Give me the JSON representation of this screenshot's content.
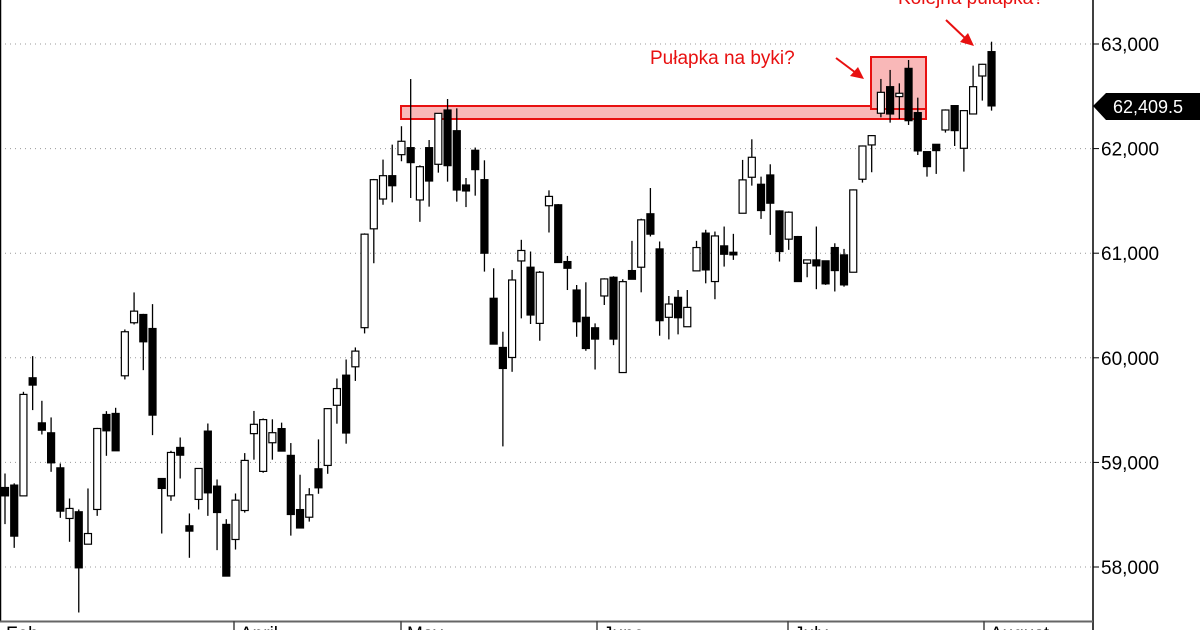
{
  "chart_data": {
    "type": "candlestick",
    "title": "",
    "xlabel": "",
    "ylabel": "",
    "ylim": [
      57500,
      63400
    ],
    "grid": true,
    "y_ticks": [
      "58,000",
      "59,000",
      "60,000",
      "61,000",
      "62,000",
      "63,000"
    ],
    "y_tick_values": [
      58000,
      59000,
      60000,
      61000,
      62000,
      63000
    ],
    "x_labels": [
      "Feb",
      "April",
      "May",
      "June",
      "July",
      "August"
    ],
    "last_price": 62409.5,
    "last_price_label": "62,409.5",
    "colors": {
      "up": "#ffffff",
      "down": "#000000",
      "annotation": "#e81010",
      "annotation_fill": "#f9b8b8",
      "grid": "#999999"
    },
    "candles_ohlc": [
      [
        58760,
        58894,
        58410,
        58680
      ],
      [
        58783,
        58800,
        58183,
        58295
      ],
      [
        58680,
        59675,
        58680,
        59650
      ],
      [
        59809,
        60016,
        59500,
        59739
      ],
      [
        59378,
        59589,
        59267,
        59308
      ],
      [
        59283,
        59430,
        58910,
        58996
      ],
      [
        58948,
        58990,
        58470,
        58534
      ],
      [
        58464,
        58655,
        58241,
        58560
      ],
      [
        58528,
        58550,
        57565,
        57992
      ],
      [
        58218,
        58751,
        58218,
        58320
      ],
      [
        58550,
        59330,
        58489,
        59324
      ],
      [
        59458,
        59490,
        59063,
        59302
      ],
      [
        59468,
        59522,
        59111,
        59111
      ],
      [
        59828,
        60271,
        59793,
        60249
      ],
      [
        60335,
        60625,
        60319,
        60446
      ],
      [
        60414,
        60420,
        59882,
        60153
      ],
      [
        60280,
        60513,
        59261,
        59452
      ],
      [
        58846,
        58850,
        58320,
        58751
      ],
      [
        58680,
        59111,
        58633,
        59095
      ],
      [
        59143,
        59238,
        58846,
        59069
      ],
      [
        58394,
        58512,
        58088,
        58343
      ],
      [
        58646,
        58942,
        58550,
        58942
      ],
      [
        59299,
        59372,
        58489,
        58709
      ],
      [
        58773,
        58837,
        58161,
        58521
      ],
      [
        58407,
        58457,
        57913,
        57913
      ],
      [
        58263,
        58703,
        58167,
        58639
      ],
      [
        58540,
        59089,
        58520,
        59019
      ],
      [
        59275,
        59492,
        59026,
        59364
      ],
      [
        58914,
        59420,
        58901,
        59409
      ],
      [
        59188,
        59412,
        59026,
        59284
      ],
      [
        59323,
        59380,
        59108,
        59108
      ],
      [
        59067,
        59185,
        58300,
        58502
      ],
      [
        58549,
        58882,
        58373,
        58373
      ],
      [
        58476,
        58754,
        58434,
        58690
      ],
      [
        58939,
        59220,
        58700,
        58757
      ],
      [
        58971,
        59520,
        58891,
        59514
      ],
      [
        59546,
        59802,
        59370,
        59706
      ],
      [
        59834,
        59984,
        59179,
        59281
      ],
      [
        59914,
        60099,
        59779,
        60064
      ],
      [
        60288,
        61190,
        60233,
        61182
      ],
      [
        61233,
        61710,
        60904,
        61703
      ],
      [
        61518,
        61895,
        61463,
        61741
      ],
      [
        61741,
        62038,
        61486,
        61645
      ],
      [
        61942,
        62214,
        61879,
        62070
      ],
      [
        62009,
        62665,
        61528,
        61866
      ],
      [
        61509,
        61840,
        61300,
        61827
      ],
      [
        62009,
        62082,
        61445,
        61690
      ],
      [
        61850,
        62340,
        61770,
        62337
      ],
      [
        62369,
        62474,
        61684,
        61837
      ],
      [
        62171,
        62385,
        61493,
        61604
      ],
      [
        61652,
        61719,
        61441,
        61595
      ],
      [
        61984,
        62010,
        61550,
        61799
      ],
      [
        61703,
        61888,
        60824,
        61000
      ],
      [
        60569,
        60856,
        60131,
        60131
      ],
      [
        60099,
        60249,
        59153,
        59898
      ],
      [
        60003,
        60840,
        59866,
        60744
      ],
      [
        60926,
        61128,
        60377,
        61026
      ],
      [
        60866,
        61016,
        60323,
        60409
      ],
      [
        60329,
        60830,
        60163,
        60818
      ],
      [
        61454,
        61601,
        61198,
        61543
      ],
      [
        61463,
        61470,
        60911,
        60911
      ],
      [
        60920,
        60974,
        60648,
        60856
      ],
      [
        60648,
        60696,
        60201,
        60345
      ],
      [
        60387,
        60722,
        60067,
        60089
      ],
      [
        60287,
        60329,
        59888,
        60179
      ],
      [
        60591,
        60760,
        60505,
        60754
      ],
      [
        60770,
        60780,
        60121,
        60179
      ],
      [
        59859,
        60751,
        59859,
        60728
      ],
      [
        60834,
        61118,
        60751,
        60751
      ],
      [
        60866,
        61330,
        60626,
        61319
      ],
      [
        61377,
        61623,
        61160,
        61182
      ],
      [
        61041,
        61112,
        60211,
        60355
      ],
      [
        60387,
        60591,
        60176,
        60514
      ],
      [
        60578,
        60648,
        60224,
        60383
      ],
      [
        60297,
        60648,
        60297,
        60482
      ],
      [
        60831,
        61118,
        60831,
        61054
      ],
      [
        61192,
        61224,
        60712,
        60840
      ],
      [
        60729,
        61207,
        60560,
        61165
      ],
      [
        61070,
        61255,
        60872,
        60990
      ],
      [
        61009,
        61185,
        60936,
        60984
      ],
      [
        61382,
        61892,
        61382,
        61701
      ],
      [
        61726,
        62089,
        61646,
        61917
      ],
      [
        61659,
        61732,
        61328,
        61408
      ],
      [
        61748,
        61850,
        61175,
        61478
      ],
      [
        61404,
        61410,
        60920,
        61016
      ],
      [
        61134,
        61400,
        61032,
        61392
      ],
      [
        61159,
        61165,
        60729,
        60729
      ],
      [
        60904,
        60940,
        60770,
        60936
      ],
      [
        60936,
        61255,
        60656,
        60879
      ],
      [
        60927,
        60930,
        60697,
        60707
      ],
      [
        61054,
        61095,
        60634,
        60834
      ],
      [
        60984,
        61041,
        60680,
        60697
      ],
      [
        60818,
        61610,
        60818,
        61605
      ],
      [
        61707,
        62030,
        61675,
        62025
      ],
      [
        62035,
        62130,
        61774,
        62124
      ],
      [
        62338,
        62666,
        62299,
        62538
      ],
      [
        62592,
        62752,
        62248,
        62331
      ],
      [
        62497,
        62624,
        62283,
        62529
      ],
      [
        62767,
        62847,
        62226,
        62267
      ],
      [
        62344,
        62487,
        61939,
        61978
      ],
      [
        61971,
        61971,
        61732,
        61828
      ],
      [
        62041,
        62041,
        61758,
        61981
      ],
      [
        62178,
        62375,
        62153,
        62369
      ],
      [
        62411,
        62415,
        62025,
        62172
      ],
      [
        62003,
        62363,
        61780,
        62363
      ],
      [
        62331,
        62793,
        62331,
        62592
      ],
      [
        62694,
        62810,
        62459,
        62806
      ],
      [
        62927,
        63022,
        62363,
        62408
      ]
    ],
    "annotations": [
      {
        "text": "Pułapka na byki?"
      },
      {
        "text": "Kolejna pułapka?"
      }
    ]
  }
}
